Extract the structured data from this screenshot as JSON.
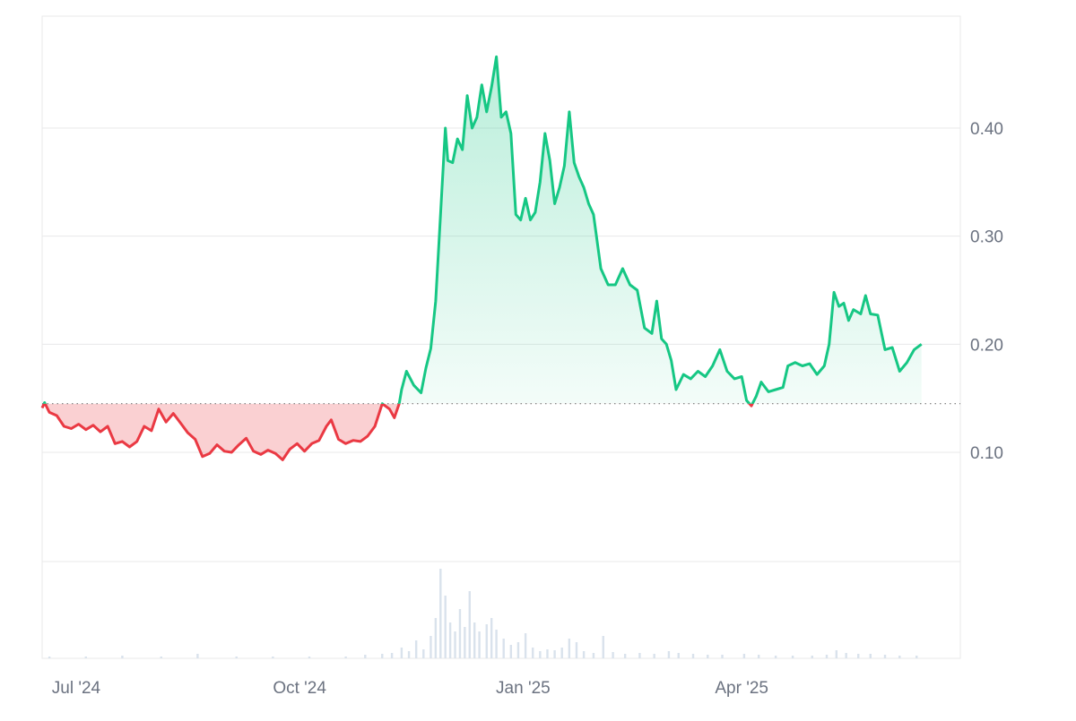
{
  "chart_data": {
    "type": "area",
    "baseline": 0.145,
    "colors": {
      "up_line": "#16c784",
      "down_line": "#ea3943",
      "up_fill": "#16c784",
      "down_fill": "#ea3943",
      "grid": "#e8e8ea",
      "axis_text": "#6b7280",
      "baseline_dots": "#777777",
      "volume": "#d9e2ec"
    },
    "price_axis": {
      "range": [
        0,
        0.5
      ],
      "ticks": [
        {
          "value": 0.4,
          "label": "0.40"
        },
        {
          "value": 0.3,
          "label": "0.30"
        },
        {
          "value": 0.2,
          "label": "0.20"
        },
        {
          "value": 0.1,
          "label": "0.10"
        }
      ]
    },
    "time_axis": {
      "range": [
        "2024-06-17",
        "2025-06-30"
      ],
      "ticks": [
        {
          "date": "2024-07-01",
          "label": "Jul '24"
        },
        {
          "date": "2024-10-01",
          "label": "Oct '24"
        },
        {
          "date": "2025-01-01",
          "label": "Jan '25"
        },
        {
          "date": "2025-04-01",
          "label": "Apr '25"
        }
      ]
    },
    "series": [
      {
        "values": [
          [
            "2024-06-17",
            0.141
          ],
          [
            "2024-06-18",
            0.146
          ],
          [
            "2024-06-20",
            0.137
          ],
          [
            "2024-06-23",
            0.134
          ],
          [
            "2024-06-26",
            0.124
          ],
          [
            "2024-06-29",
            0.122
          ],
          [
            "2024-07-02",
            0.126
          ],
          [
            "2024-07-05",
            0.121
          ],
          [
            "2024-07-08",
            0.125
          ],
          [
            "2024-07-11",
            0.119
          ],
          [
            "2024-07-14",
            0.124
          ],
          [
            "2024-07-17",
            0.108
          ],
          [
            "2024-07-20",
            0.11
          ],
          [
            "2024-07-23",
            0.105
          ],
          [
            "2024-07-26",
            0.11
          ],
          [
            "2024-07-29",
            0.124
          ],
          [
            "2024-08-01",
            0.12
          ],
          [
            "2024-08-04",
            0.14
          ],
          [
            "2024-08-07",
            0.128
          ],
          [
            "2024-08-10",
            0.136
          ],
          [
            "2024-08-13",
            0.127
          ],
          [
            "2024-08-16",
            0.118
          ],
          [
            "2024-08-19",
            0.112
          ],
          [
            "2024-08-22",
            0.096
          ],
          [
            "2024-08-25",
            0.099
          ],
          [
            "2024-08-28",
            0.107
          ],
          [
            "2024-08-31",
            0.101
          ],
          [
            "2024-09-03",
            0.1
          ],
          [
            "2024-09-06",
            0.107
          ],
          [
            "2024-09-09",
            0.113
          ],
          [
            "2024-09-12",
            0.101
          ],
          [
            "2024-09-15",
            0.098
          ],
          [
            "2024-09-18",
            0.102
          ],
          [
            "2024-09-21",
            0.099
          ],
          [
            "2024-09-24",
            0.093
          ],
          [
            "2024-09-27",
            0.103
          ],
          [
            "2024-09-30",
            0.108
          ],
          [
            "2024-10-03",
            0.101
          ],
          [
            "2024-10-06",
            0.108
          ],
          [
            "2024-10-09",
            0.111
          ],
          [
            "2024-10-12",
            0.124
          ],
          [
            "2024-10-14",
            0.13
          ],
          [
            "2024-10-17",
            0.112
          ],
          [
            "2024-10-20",
            0.108
          ],
          [
            "2024-10-23",
            0.111
          ],
          [
            "2024-10-26",
            0.11
          ],
          [
            "2024-10-29",
            0.115
          ],
          [
            "2024-11-01",
            0.124
          ],
          [
            "2024-11-04",
            0.145
          ],
          [
            "2024-11-07",
            0.14
          ],
          [
            "2024-11-09",
            0.132
          ],
          [
            "2024-11-11",
            0.145
          ],
          [
            "2024-11-12",
            0.158
          ],
          [
            "2024-11-14",
            0.175
          ],
          [
            "2024-11-17",
            0.162
          ],
          [
            "2024-11-20",
            0.155
          ],
          [
            "2024-11-22",
            0.178
          ],
          [
            "2024-11-24",
            0.196
          ],
          [
            "2024-11-26",
            0.24
          ],
          [
            "2024-11-28",
            0.32
          ],
          [
            "2024-11-30",
            0.4
          ],
          [
            "2024-12-01",
            0.37
          ],
          [
            "2024-12-03",
            0.368
          ],
          [
            "2024-12-05",
            0.39
          ],
          [
            "2024-12-07",
            0.38
          ],
          [
            "2024-12-09",
            0.43
          ],
          [
            "2024-12-11",
            0.4
          ],
          [
            "2024-12-13",
            0.41
          ],
          [
            "2024-12-15",
            0.44
          ],
          [
            "2024-12-17",
            0.415
          ],
          [
            "2024-12-19",
            0.438
          ],
          [
            "2024-12-21",
            0.466
          ],
          [
            "2024-12-23",
            0.41
          ],
          [
            "2024-12-25",
            0.415
          ],
          [
            "2024-12-27",
            0.395
          ],
          [
            "2024-12-29",
            0.32
          ],
          [
            "2024-12-31",
            0.315
          ],
          [
            "2025-01-02",
            0.335
          ],
          [
            "2025-01-04",
            0.315
          ],
          [
            "2025-01-06",
            0.322
          ],
          [
            "2025-01-08",
            0.35
          ],
          [
            "2025-01-10",
            0.395
          ],
          [
            "2025-01-12",
            0.37
          ],
          [
            "2025-01-14",
            0.33
          ],
          [
            "2025-01-16",
            0.345
          ],
          [
            "2025-01-18",
            0.365
          ],
          [
            "2025-01-20",
            0.415
          ],
          [
            "2025-01-22",
            0.368
          ],
          [
            "2025-01-24",
            0.355
          ],
          [
            "2025-01-26",
            0.345
          ],
          [
            "2025-01-28",
            0.33
          ],
          [
            "2025-01-30",
            0.32
          ],
          [
            "2025-02-02",
            0.27
          ],
          [
            "2025-02-05",
            0.255
          ],
          [
            "2025-02-08",
            0.255
          ],
          [
            "2025-02-11",
            0.27
          ],
          [
            "2025-02-14",
            0.255
          ],
          [
            "2025-02-17",
            0.25
          ],
          [
            "2025-02-20",
            0.215
          ],
          [
            "2025-02-23",
            0.21
          ],
          [
            "2025-02-25",
            0.24
          ],
          [
            "2025-02-27",
            0.205
          ],
          [
            "2025-03-01",
            0.2
          ],
          [
            "2025-03-03",
            0.185
          ],
          [
            "2025-03-05",
            0.158
          ],
          [
            "2025-03-08",
            0.172
          ],
          [
            "2025-03-11",
            0.168
          ],
          [
            "2025-03-14",
            0.175
          ],
          [
            "2025-03-17",
            0.17
          ],
          [
            "2025-03-20",
            0.18
          ],
          [
            "2025-03-23",
            0.195
          ],
          [
            "2025-03-26",
            0.175
          ],
          [
            "2025-03-29",
            0.168
          ],
          [
            "2025-04-01",
            0.17
          ],
          [
            "2025-04-03",
            0.148
          ],
          [
            "2025-04-05",
            0.143
          ],
          [
            "2025-04-07",
            0.152
          ],
          [
            "2025-04-09",
            0.165
          ],
          [
            "2025-04-12",
            0.156
          ],
          [
            "2025-04-15",
            0.158
          ],
          [
            "2025-04-18",
            0.16
          ],
          [
            "2025-04-20",
            0.18
          ],
          [
            "2025-04-23",
            0.183
          ],
          [
            "2025-04-26",
            0.18
          ],
          [
            "2025-04-29",
            0.182
          ],
          [
            "2025-05-02",
            0.172
          ],
          [
            "2025-05-05",
            0.18
          ],
          [
            "2025-05-07",
            0.2
          ],
          [
            "2025-05-09",
            0.248
          ],
          [
            "2025-05-11",
            0.235
          ],
          [
            "2025-05-13",
            0.238
          ],
          [
            "2025-05-15",
            0.222
          ],
          [
            "2025-05-17",
            0.232
          ],
          [
            "2025-05-20",
            0.228
          ],
          [
            "2025-05-22",
            0.245
          ],
          [
            "2025-05-24",
            0.228
          ],
          [
            "2025-05-27",
            0.227
          ],
          [
            "2025-05-30",
            0.195
          ],
          [
            "2025-06-02",
            0.197
          ],
          [
            "2025-06-05",
            0.175
          ],
          [
            "2025-06-08",
            0.183
          ],
          [
            "2025-06-11",
            0.195
          ],
          [
            "2025-06-14",
            0.2
          ]
        ]
      }
    ],
    "volume": [
      [
        "2024-06-20",
        0.02
      ],
      [
        "2024-07-05",
        0.02
      ],
      [
        "2024-07-20",
        0.03
      ],
      [
        "2024-08-05",
        0.02
      ],
      [
        "2024-08-20",
        0.05
      ],
      [
        "2024-09-05",
        0.02
      ],
      [
        "2024-09-20",
        0.02
      ],
      [
        "2024-10-05",
        0.02
      ],
      [
        "2024-10-20",
        0.02
      ],
      [
        "2024-10-28",
        0.04
      ],
      [
        "2024-11-04",
        0.05
      ],
      [
        "2024-11-08",
        0.06
      ],
      [
        "2024-11-12",
        0.12
      ],
      [
        "2024-11-15",
        0.08
      ],
      [
        "2024-11-18",
        0.2
      ],
      [
        "2024-11-21",
        0.1
      ],
      [
        "2024-11-24",
        0.25
      ],
      [
        "2024-11-26",
        0.45
      ],
      [
        "2024-11-28",
        1.0
      ],
      [
        "2024-11-30",
        0.7
      ],
      [
        "2024-12-02",
        0.4
      ],
      [
        "2024-12-04",
        0.3
      ],
      [
        "2024-12-06",
        0.55
      ],
      [
        "2024-12-08",
        0.35
      ],
      [
        "2024-12-10",
        0.75
      ],
      [
        "2024-12-12",
        0.4
      ],
      [
        "2024-12-14",
        0.3
      ],
      [
        "2024-12-17",
        0.38
      ],
      [
        "2024-12-19",
        0.45
      ],
      [
        "2024-12-21",
        0.32
      ],
      [
        "2024-12-24",
        0.22
      ],
      [
        "2024-12-27",
        0.15
      ],
      [
        "2024-12-30",
        0.18
      ],
      [
        "2025-01-02",
        0.28
      ],
      [
        "2025-01-05",
        0.12
      ],
      [
        "2025-01-08",
        0.08
      ],
      [
        "2025-01-11",
        0.1
      ],
      [
        "2025-01-14",
        0.09
      ],
      [
        "2025-01-17",
        0.12
      ],
      [
        "2025-01-20",
        0.22
      ],
      [
        "2025-01-23",
        0.18
      ],
      [
        "2025-01-26",
        0.08
      ],
      [
        "2025-01-30",
        0.06
      ],
      [
        "2025-02-03",
        0.25
      ],
      [
        "2025-02-07",
        0.07
      ],
      [
        "2025-02-12",
        0.05
      ],
      [
        "2025-02-18",
        0.06
      ],
      [
        "2025-02-24",
        0.05
      ],
      [
        "2025-03-02",
        0.08
      ],
      [
        "2025-03-06",
        0.06
      ],
      [
        "2025-03-12",
        0.05
      ],
      [
        "2025-03-18",
        0.04
      ],
      [
        "2025-03-24",
        0.04
      ],
      [
        "2025-04-02",
        0.05
      ],
      [
        "2025-04-08",
        0.04
      ],
      [
        "2025-04-15",
        0.03
      ],
      [
        "2025-04-22",
        0.03
      ],
      [
        "2025-04-30",
        0.03
      ],
      [
        "2025-05-06",
        0.04
      ],
      [
        "2025-05-10",
        0.09
      ],
      [
        "2025-05-14",
        0.06
      ],
      [
        "2025-05-19",
        0.05
      ],
      [
        "2025-05-24",
        0.05
      ],
      [
        "2025-05-30",
        0.04
      ],
      [
        "2025-06-05",
        0.03
      ],
      [
        "2025-06-12",
        0.03
      ]
    ]
  }
}
